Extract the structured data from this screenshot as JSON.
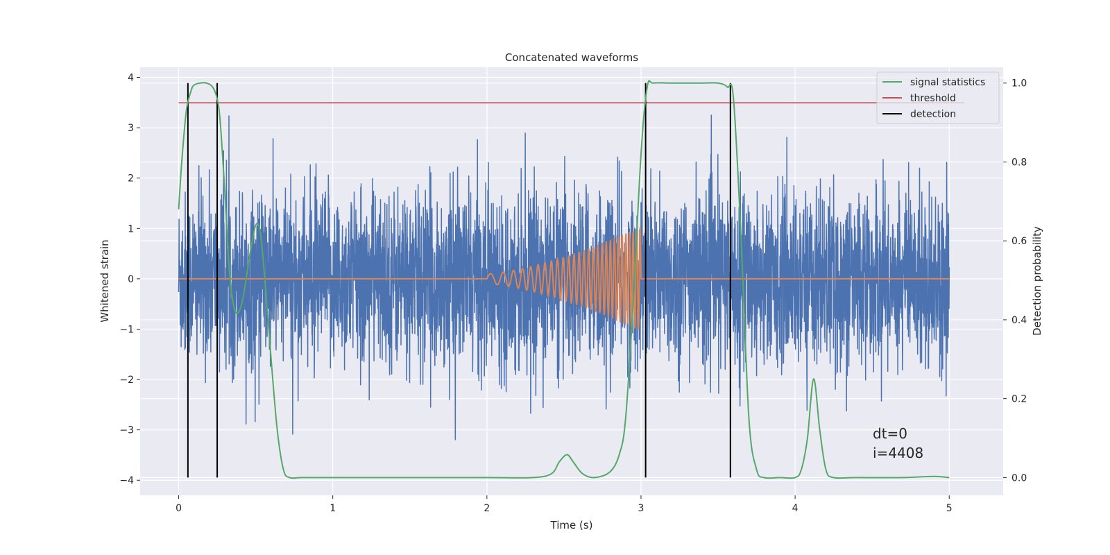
{
  "chart_data": {
    "type": "line",
    "title": "Concatenated waveforms",
    "xlabel": "Time (s)",
    "ylabel": "Whitened strain",
    "y2label": "Detection probability",
    "xlim": [
      -0.25,
      5.35
    ],
    "ylim": [
      -4.3,
      4.2
    ],
    "y2lim": [
      -0.045,
      1.04
    ],
    "xticks": [
      0,
      1,
      2,
      3,
      4,
      5
    ],
    "yticks": [
      -4,
      -3,
      -2,
      -1,
      0,
      1,
      2,
      3,
      4
    ],
    "y2ticks": [
      0.0,
      0.2,
      0.4,
      0.6,
      0.8,
      1.0
    ],
    "y2tick_labels": [
      "0.0",
      "0.2",
      "0.4",
      "0.6",
      "0.8",
      "1.0"
    ],
    "grid": true,
    "legend_position": "top-right",
    "colors": {
      "strain": "#4c72b0",
      "injection": "#dd8452",
      "signal_statistics": "#55a868",
      "threshold": "#c44e52",
      "detection": "#000000",
      "background": "#eaeaf2",
      "grid": "#ffffff"
    },
    "legend": [
      {
        "key": "signal_statistics",
        "label": "signal statistics"
      },
      {
        "key": "threshold",
        "label": "threshold"
      },
      {
        "key": "detection",
        "label": "detection"
      }
    ],
    "whitened_strain": {
      "x_range": [
        0,
        5
      ],
      "typical_range": [
        -2,
        2
      ],
      "extremes": [
        -3.9,
        3.65
      ]
    },
    "injected_waveform": {
      "x": [
        2.0,
        3.0
      ],
      "start_amplitude": 0.1,
      "end_amplitude": 1.05,
      "start_frequency_hz": 10,
      "end_frequency_hz": 45
    },
    "signal_statistics": {
      "x": [
        0.0,
        0.02,
        0.05,
        0.08,
        0.1,
        0.14,
        0.18,
        0.22,
        0.25,
        0.27,
        0.3,
        0.33,
        0.36,
        0.39,
        0.42,
        0.46,
        0.5,
        0.53,
        0.56,
        0.6,
        0.64,
        0.68,
        0.72,
        0.8,
        1.0,
        1.5,
        2.0,
        2.3,
        2.42,
        2.47,
        2.52,
        2.56,
        2.62,
        2.7,
        2.8,
        2.86,
        2.9,
        2.95,
        3.0,
        3.04,
        3.08,
        3.2,
        3.4,
        3.5,
        3.56,
        3.6,
        3.65,
        3.7,
        3.75,
        3.8,
        3.9,
        4.0,
        4.04,
        4.08,
        4.12,
        4.16,
        4.2,
        4.25,
        4.4,
        4.7,
        4.9,
        5.0
      ],
      "y": [
        0.68,
        0.8,
        0.93,
        0.98,
        0.995,
        1.0,
        1.0,
        0.99,
        0.96,
        0.9,
        0.72,
        0.52,
        0.43,
        0.42,
        0.46,
        0.56,
        0.64,
        0.62,
        0.5,
        0.3,
        0.12,
        0.02,
        0.0,
        0.0,
        0.0,
        0.0,
        0.0,
        0.0,
        0.01,
        0.04,
        0.058,
        0.04,
        0.01,
        0.0,
        0.015,
        0.06,
        0.15,
        0.45,
        0.82,
        0.99,
        1.0,
        1.0,
        1.0,
        1.0,
        0.99,
        0.96,
        0.6,
        0.15,
        0.02,
        0.0,
        0.0,
        0.0,
        0.02,
        0.1,
        0.25,
        0.12,
        0.02,
        0.0,
        0.0,
        0.0,
        0.003,
        0.0
      ]
    },
    "threshold": {
      "value": 0.95,
      "x": [
        0,
        5.1
      ]
    },
    "detections": [
      0.06,
      0.25,
      3.03,
      3.58
    ],
    "annotations": [
      "dt=0",
      "i=4408"
    ]
  }
}
